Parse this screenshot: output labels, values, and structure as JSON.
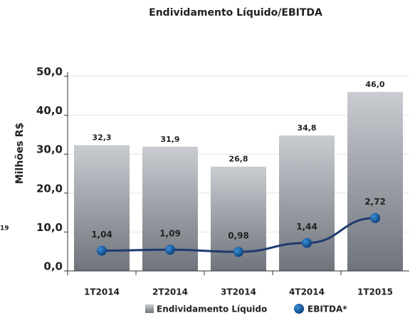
{
  "chart_data": {
    "type": "bar",
    "title": "Endividamento Líquido/EBITDA",
    "y_label": "Milhões R$",
    "annotations": [
      "19"
    ],
    "categories": [
      "1T2014",
      "2T2014",
      "3T2014",
      "4T2014",
      "1T2015"
    ],
    "series": [
      {
        "name": "Endividamento Líquido",
        "color": "#9ea2a9",
        "type": "bar",
        "values": [
          32.3,
          31.9,
          26.8,
          34.8,
          46.0
        ],
        "value_labels": [
          "32,3",
          "31,9",
          "26,8",
          "34,8",
          "46,0"
        ]
      },
      {
        "name": "EBITDA*",
        "color": "#1f3a6e",
        "type": "line",
        "axis": "y2",
        "values": [
          1.04,
          1.09,
          0.98,
          1.44,
          2.72
        ],
        "value_labels": [
          "1,04",
          "1,09",
          "0,98",
          "1,44",
          "2,72"
        ]
      }
    ],
    "ylim": [
      0,
      50
    ],
    "yticks": [
      {
        "value": 0,
        "label": "0,0"
      },
      {
        "value": 10,
        "label": "10,0"
      },
      {
        "value": 20,
        "label": "20,0"
      },
      {
        "value": 30,
        "label": "30,0"
      },
      {
        "value": 40,
        "label": "40,0"
      },
      {
        "value": 50,
        "label": "50,0"
      }
    ],
    "y2lim": [
      0,
      10
    ]
  }
}
